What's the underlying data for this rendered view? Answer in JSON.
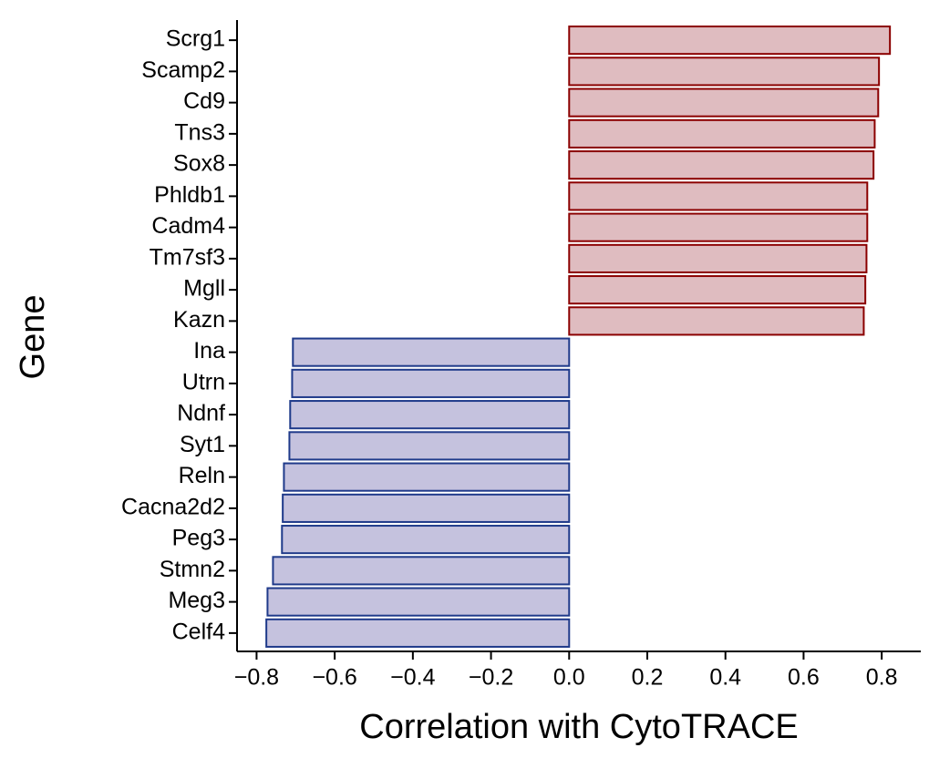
{
  "chart_data": {
    "type": "hbar",
    "x_label": "Correlation with CytoTRACE",
    "y_label": "Gene",
    "categories": [
      "Scrg1",
      "Scamp2",
      "Cd9",
      "Tns3",
      "Sox8",
      "Phldb1",
      "Cadm4",
      "Tm7sf3",
      "Mgll",
      "Kazn",
      "Ina",
      "Utrn",
      "Ndnf",
      "Syt1",
      "Reln",
      "Cacna2d2",
      "Peg3",
      "Stmn2",
      "Meg3",
      "Celf4"
    ],
    "values": [
      0.821,
      0.793,
      0.791,
      0.782,
      0.779,
      0.763,
      0.763,
      0.761,
      0.758,
      0.754,
      -0.707,
      -0.709,
      -0.714,
      -0.716,
      -0.73,
      -0.733,
      -0.735,
      -0.758,
      -0.772,
      -0.775
    ],
    "positive_color": "#dfbcc0",
    "positive_edge": "#8b0000",
    "negative_color": "#c5c2de",
    "negative_edge": "#1f3a8a",
    "xlim": [
      -0.85,
      0.9
    ],
    "xticks": [
      {
        "value": -0.8,
        "label": "−0.8"
      },
      {
        "value": -0.6,
        "label": "−0.6"
      },
      {
        "value": -0.4,
        "label": "−0.4"
      },
      {
        "value": -0.2,
        "label": "−0.2"
      },
      {
        "value": 0,
        "label": "0.0"
      },
      0.2,
      0.4,
      0.6,
      0.8
    ],
    "grid": false
  }
}
